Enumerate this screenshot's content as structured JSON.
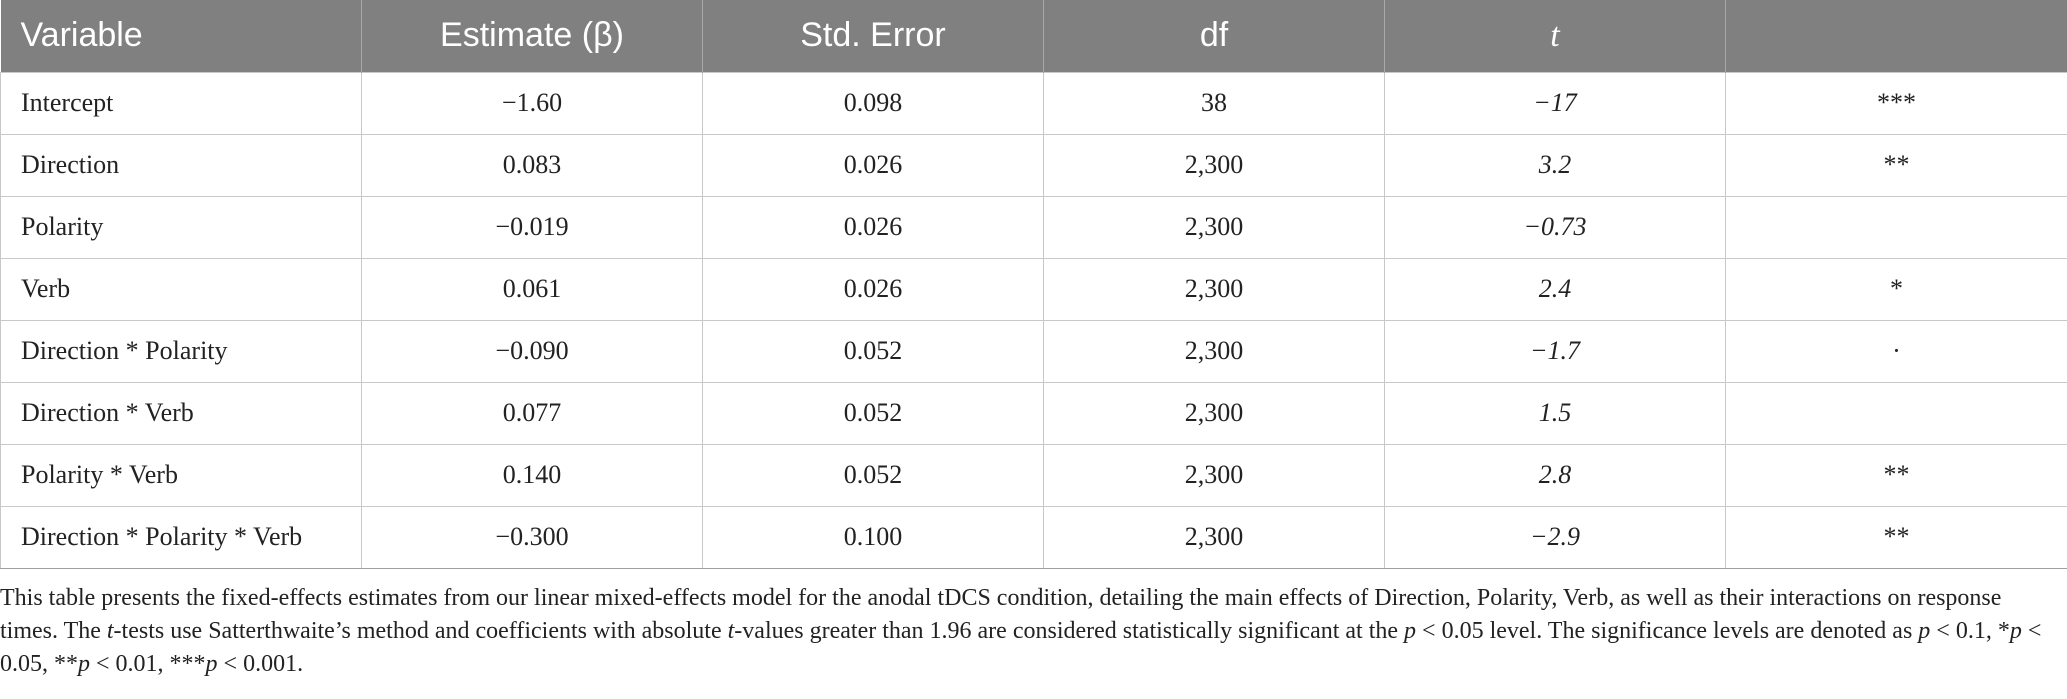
{
  "table": {
    "headers": [
      "Variable",
      "Estimate (β)",
      "Std. Error",
      "df",
      "t",
      ""
    ],
    "rows": [
      {
        "variable": "Intercept",
        "estimate": "−1.60",
        "std_error": "0.098",
        "df": "38",
        "t": "−17",
        "sig": "***"
      },
      {
        "variable": "Direction",
        "estimate": "0.083",
        "std_error": "0.026",
        "df": "2,300",
        "t": "3.2",
        "sig": "**"
      },
      {
        "variable": "Polarity",
        "estimate": "−0.019",
        "std_error": "0.026",
        "df": "2,300",
        "t": "−0.73",
        "sig": ""
      },
      {
        "variable": "Verb",
        "estimate": "0.061",
        "std_error": "0.026",
        "df": "2,300",
        "t": "2.4",
        "sig": "*"
      },
      {
        "variable": "Direction * Polarity",
        "estimate": "−0.090",
        "std_error": "0.052",
        "df": "2,300",
        "t": "−1.7",
        "sig": "·"
      },
      {
        "variable": "Direction * Verb",
        "estimate": "0.077",
        "std_error": "0.052",
        "df": "2,300",
        "t": "1.5",
        "sig": ""
      },
      {
        "variable": "Polarity * Verb",
        "estimate": "0.140",
        "std_error": "0.052",
        "df": "2,300",
        "t": "2.8",
        "sig": "**"
      },
      {
        "variable": "Direction * Polarity * Verb",
        "estimate": "−0.300",
        "std_error": "0.100",
        "df": "2,300",
        "t": "−2.9",
        "sig": "**"
      }
    ]
  },
  "footnote": {
    "s1": "This table presents the fixed-effects estimates from our linear mixed-effects model for the anodal tDCS condition, detailing the main effects of Direction, Polarity, Verb, as well as their interactions on response times. The ",
    "s2": "t",
    "s3": "-tests use Satterthwaite’s method and coefficients with absolute ",
    "s4": "t",
    "s5": "-values greater than 1.96 are considered statistically significant at the ",
    "s6": "p",
    "s7": " < 0.05 level. The significance levels are denoted as ",
    "s8": "p",
    "s9": " < 0.1, *",
    "s10": "p",
    "s11": " < 0.05, **",
    "s12": "p",
    "s13": " < 0.01, ***",
    "s14": "p",
    "s15": " < 0.001."
  }
}
